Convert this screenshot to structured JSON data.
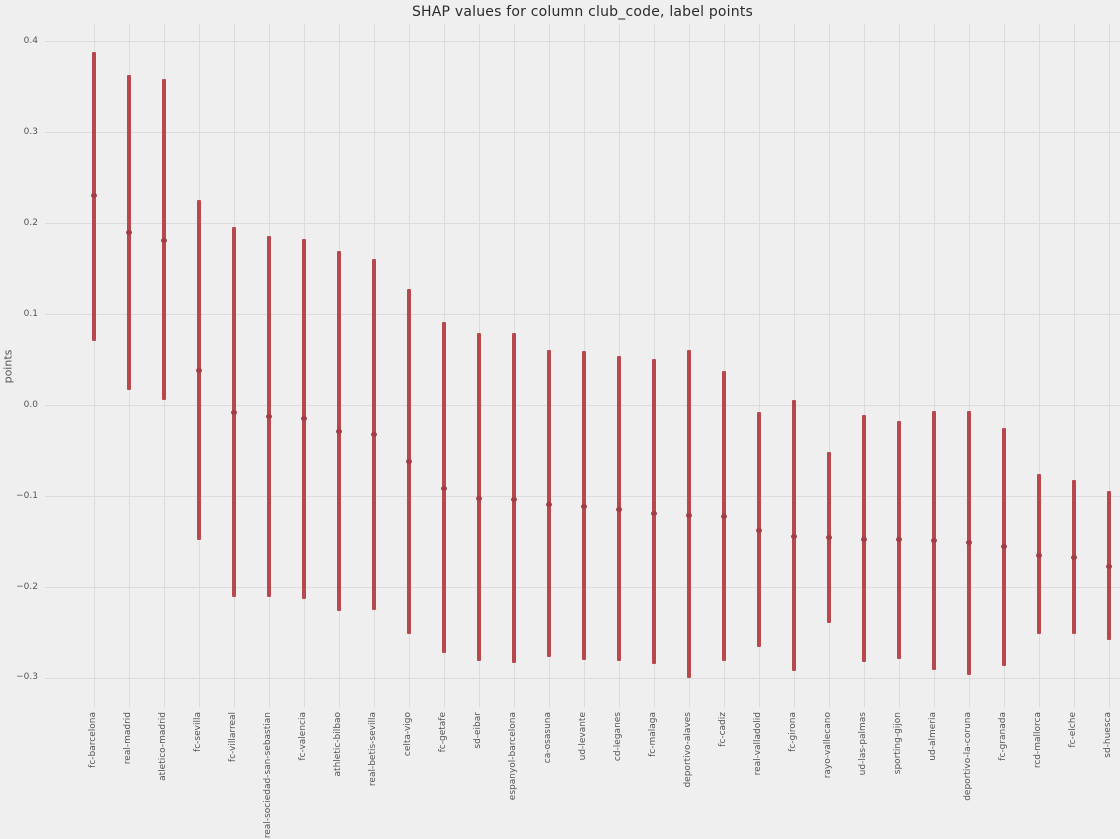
{
  "colors": {
    "background": "#efefef",
    "grid": "#dcdcdc",
    "bar": "#b7484e",
    "marker": "#a13e45",
    "tick_text": "#555555",
    "title_text": "#2b2b2b"
  },
  "chart_data": {
    "type": "errorbar",
    "title": "SHAP values for column club_code, label points",
    "xlabel": "",
    "ylabel": "points",
    "grid": true,
    "legend": false,
    "ylim": [
      -0.332,
      0.419
    ],
    "ytick_values": [
      0.4,
      0.3,
      0.2,
      0.1,
      0.0,
      -0.1,
      -0.2,
      -0.3
    ],
    "ytick_labels": [
      "0.4",
      "0.3",
      "0.2",
      "0.1",
      "0.0",
      "−0.1",
      "−0.2",
      "−0.3"
    ],
    "categories": [
      "fc-barcelona",
      "real-madrid",
      "atletico-madrid",
      "fc-sevilla",
      "fc-villarreal",
      "real-sociedad-san-sebastian",
      "fc-valencia",
      "athletic-bilbao",
      "real-betis-sevilla",
      "celta-vigo",
      "fc-getafe",
      "sd-eibar",
      "espanyol-barcelona",
      "ca-osasuna",
      "ud-levante",
      "cd-leganes",
      "fc-malaga",
      "deportivo-alaves",
      "fc-cadiz",
      "real-valladolid",
      "fc-girona",
      "rayo-vallecano",
      "ud-las-palmas",
      "sporting-gijon",
      "ud-almeria",
      "deportivo-la-coruna",
      "fc-granada",
      "rcd-mallorca",
      "fc-elche",
      "sd-huesca"
    ],
    "series": [
      {
        "name": "shap_mean",
        "values": [
          0.23,
          0.19,
          0.181,
          0.038,
          -0.008,
          -0.012,
          -0.015,
          -0.029,
          -0.032,
          -0.062,
          -0.092,
          -0.103,
          -0.104,
          -0.109,
          -0.111,
          -0.115,
          -0.119,
          -0.121,
          -0.123,
          -0.138,
          -0.145,
          -0.146,
          -0.148,
          -0.148,
          -0.149,
          -0.151,
          -0.156,
          -0.165,
          -0.168,
          -0.177
        ]
      },
      {
        "name": "shap_low",
        "values": [
          0.07,
          0.016,
          0.006,
          -0.148,
          -0.211,
          -0.211,
          -0.213,
          -0.226,
          -0.225,
          -0.252,
          -0.273,
          -0.281,
          -0.284,
          -0.277,
          -0.28,
          -0.281,
          -0.285,
          -0.3,
          -0.281,
          -0.266,
          -0.293,
          -0.24,
          -0.283,
          -0.279,
          -0.291,
          -0.297,
          -0.287,
          -0.252,
          -0.252,
          -0.258
        ]
      },
      {
        "name": "shap_high",
        "values": [
          0.388,
          0.363,
          0.359,
          0.225,
          0.196,
          0.186,
          0.183,
          0.17,
          0.161,
          0.128,
          0.091,
          0.079,
          0.079,
          0.061,
          0.059,
          0.054,
          0.051,
          0.061,
          0.037,
          -0.008,
          0.006,
          -0.052,
          -0.011,
          -0.017,
          -0.006,
          -0.006,
          -0.025,
          -0.076,
          -0.082,
          -0.094
        ]
      }
    ]
  }
}
